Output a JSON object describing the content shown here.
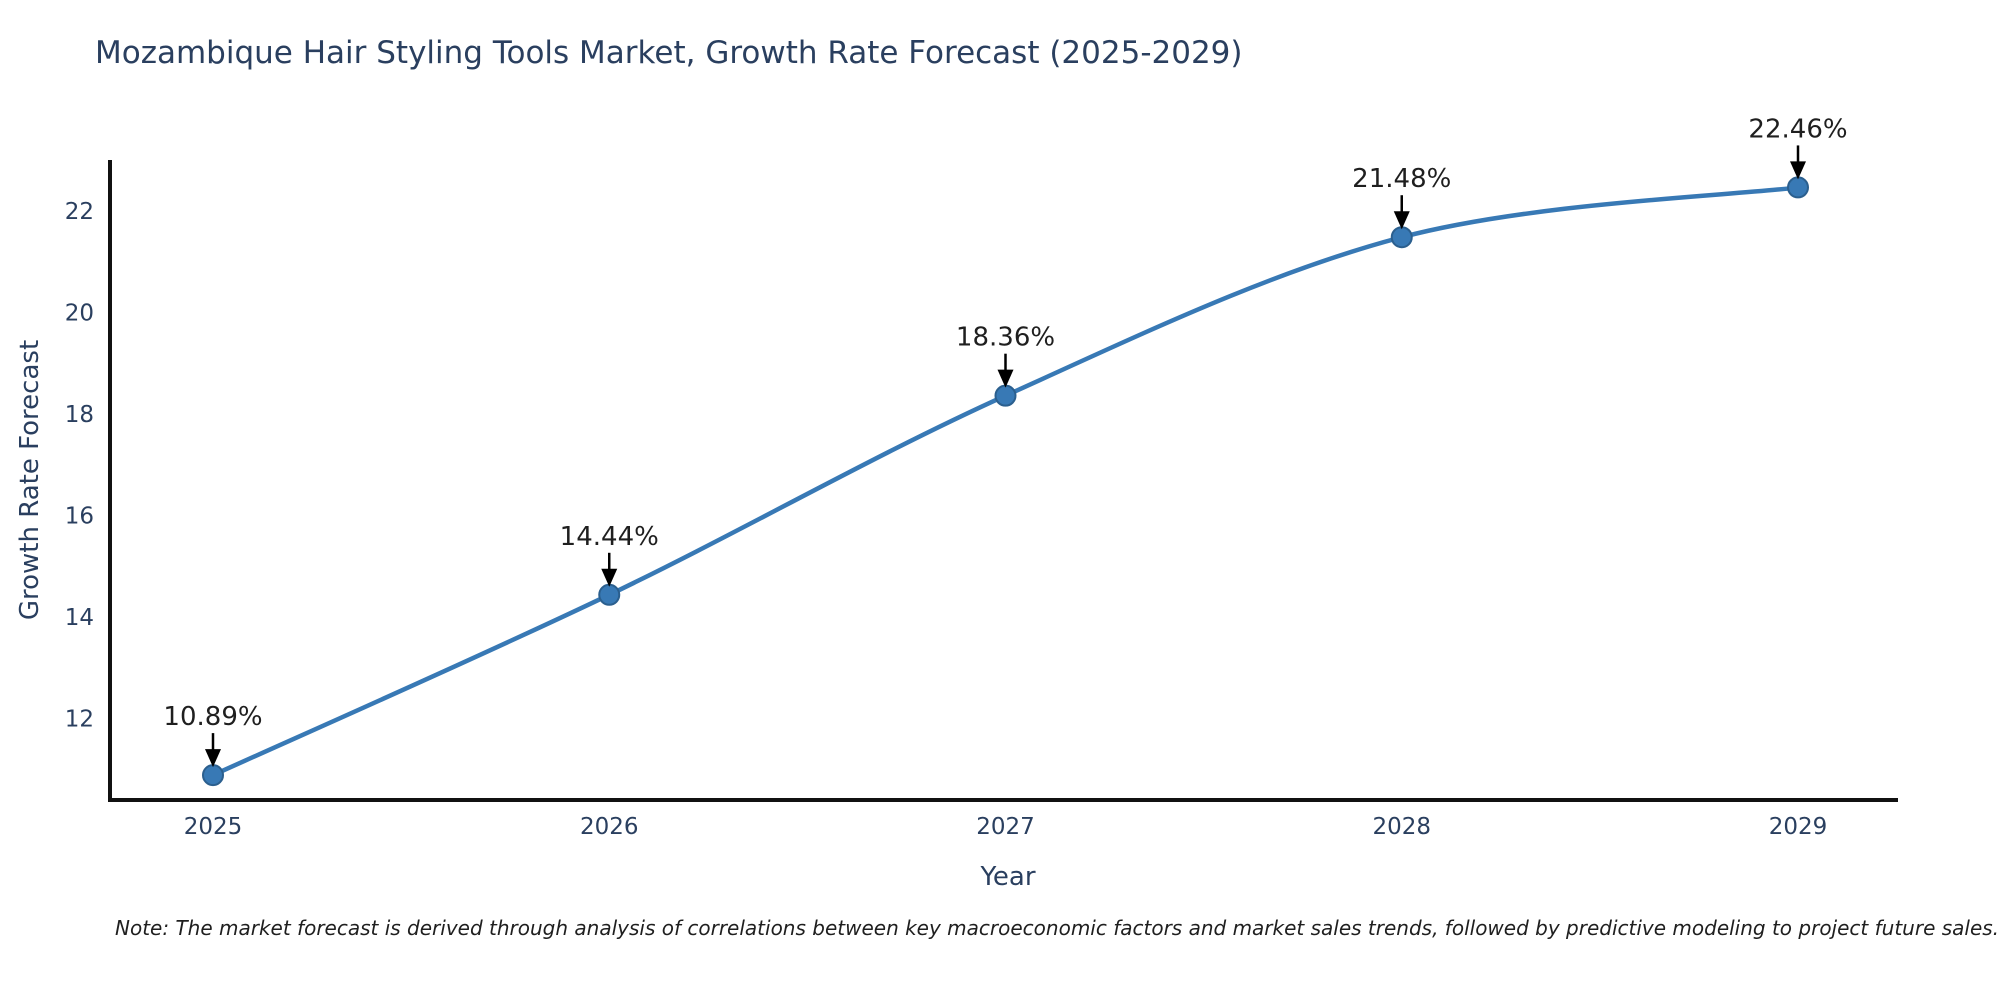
{
  "title": "Mozambique Hair Styling Tools Market, Growth Rate Forecast (2025-2029)",
  "note": "Note: The market forecast is derived through analysis of correlations between key macroeconomic factors and market sales trends, followed by predictive modeling to project future sales.",
  "chart_data": {
    "type": "line",
    "title": "Mozambique Hair Styling Tools Market, Growth Rate Forecast (2025-2029)",
    "x": [
      2025,
      2026,
      2027,
      2028,
      2029
    ],
    "categories": [
      "2025",
      "2026",
      "2027",
      "2028",
      "2029"
    ],
    "series": [
      {
        "name": "Growth Rate Forecast",
        "values": [
          10.89,
          14.44,
          18.36,
          21.48,
          22.46
        ]
      }
    ],
    "point_labels": [
      "10.89%",
      "14.44%",
      "18.36%",
      "21.48%",
      "22.46%"
    ],
    "xlabel": "Year",
    "ylabel": "Growth Rate Forecast",
    "yticks": [
      12,
      14,
      16,
      18,
      20,
      22
    ],
    "ylim": [
      10.4,
      23.0
    ],
    "grid": false,
    "legend_position": "none",
    "line_smoothing": "spline",
    "annotations_style": "value label with down arrow to each point",
    "colors": {
      "line": "#3879b5",
      "marker_fill": "#3879b5",
      "marker_edge": "#2b5f8e",
      "axis_line": "#111111",
      "tick_text": "#2a3f5f",
      "annotation_text": "#1f1f1f",
      "arrow": "#000000",
      "background": "#ffffff"
    }
  }
}
